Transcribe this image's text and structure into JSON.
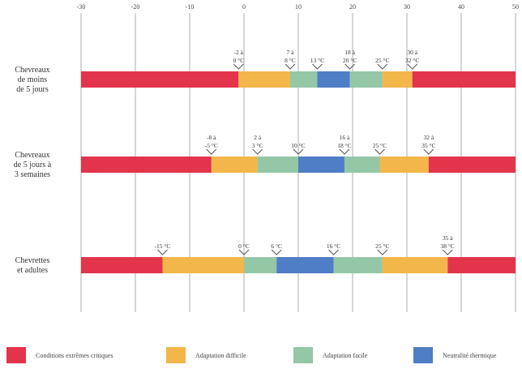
{
  "axis": {
    "min": -30,
    "max": 50,
    "ticks": [
      "-30",
      "-20",
      "-10",
      "0",
      "10",
      "20",
      "30",
      "40",
      "50"
    ]
  },
  "colors": {
    "critique": "#e2344b",
    "difficile": "#f3b64a",
    "facile": "#94c7a6",
    "neutralite": "#4f7dc6"
  },
  "legend": [
    {
      "key": "critique",
      "label": "Conditions extrêmes critiques"
    },
    {
      "key": "difficile",
      "label": "Adaptation difficile"
    },
    {
      "key": "facile",
      "label": "Adaptation facile"
    },
    {
      "key": "neutralite",
      "label": "Neutralité thermique"
    }
  ],
  "rows": [
    {
      "label": [
        "Chevreaux",
        "de moins",
        "de 5 jours"
      ],
      "segments": [
        {
          "from": -30,
          "to": -1,
          "zone": "critique"
        },
        {
          "from": -1,
          "to": 8.5,
          "zone": "difficile"
        },
        {
          "from": 8.5,
          "to": 13.5,
          "zone": "facile"
        },
        {
          "from": 13.5,
          "to": 19.5,
          "zone": "neutralite"
        },
        {
          "from": 19.5,
          "to": 25.5,
          "zone": "facile"
        },
        {
          "from": 25.5,
          "to": 31,
          "zone": "difficile"
        },
        {
          "from": 31,
          "to": 50,
          "zone": "critique"
        }
      ],
      "markers": [
        {
          "at": -1,
          "text": [
            "-2 à",
            "0 °C"
          ]
        },
        {
          "at": 8.5,
          "text": [
            "7 à",
            "8 °C"
          ]
        },
        {
          "at": 13.5,
          "text": [
            "13 °C"
          ]
        },
        {
          "at": 19.5,
          "text": [
            "18 à",
            "20 °C"
          ]
        },
        {
          "at": 25.5,
          "text": [
            "25 °C"
          ]
        },
        {
          "at": 31,
          "text": [
            "30 à",
            "32 °C"
          ]
        }
      ]
    },
    {
      "label": [
        "Chevreaux",
        "de 5 jours à",
        "3 semaines"
      ],
      "segments": [
        {
          "from": -30,
          "to": -6,
          "zone": "critique"
        },
        {
          "from": -6,
          "to": 2.5,
          "zone": "difficile"
        },
        {
          "from": 2.5,
          "to": 10,
          "zone": "facile"
        },
        {
          "from": 10,
          "to": 18.5,
          "zone": "neutralite"
        },
        {
          "from": 18.5,
          "to": 25,
          "zone": "facile"
        },
        {
          "from": 25,
          "to": 34,
          "zone": "difficile"
        },
        {
          "from": 34,
          "to": 50,
          "zone": "critique"
        }
      ],
      "markers": [
        {
          "at": -6,
          "text": [
            "-8 à",
            "-5 °C"
          ]
        },
        {
          "at": 2.5,
          "text": [
            "2 à",
            "3 °C"
          ]
        },
        {
          "at": 10,
          "text": [
            "10 °C"
          ]
        },
        {
          "at": 18.5,
          "text": [
            "16 à",
            "18 °C"
          ]
        },
        {
          "at": 25,
          "text": [
            "25 °C"
          ]
        },
        {
          "at": 34,
          "text": [
            "32 à",
            "35 °C"
          ]
        }
      ]
    },
    {
      "label": [
        "Chevrettes",
        "et adultes"
      ],
      "segments": [
        {
          "from": -30,
          "to": -15,
          "zone": "critique"
        },
        {
          "from": -15,
          "to": 0,
          "zone": "difficile"
        },
        {
          "from": 0,
          "to": 6,
          "zone": "facile"
        },
        {
          "from": 6,
          "to": 16.5,
          "zone": "neutralite"
        },
        {
          "from": 16.5,
          "to": 25.5,
          "zone": "facile"
        },
        {
          "from": 25.5,
          "to": 37.5,
          "zone": "difficile"
        },
        {
          "from": 37.5,
          "to": 50,
          "zone": "critique"
        }
      ],
      "markers": [
        {
          "at": -15,
          "text": [
            "-15 °C"
          ]
        },
        {
          "at": 0,
          "text": [
            "0 °C"
          ]
        },
        {
          "at": 6,
          "text": [
            "6 °C"
          ]
        },
        {
          "at": 16.5,
          "text": [
            "16 °C"
          ]
        },
        {
          "at": 25.5,
          "text": [
            "25 °C"
          ]
        },
        {
          "at": 37.5,
          "text": [
            "35 à",
            "38 °C"
          ]
        }
      ]
    }
  ]
}
